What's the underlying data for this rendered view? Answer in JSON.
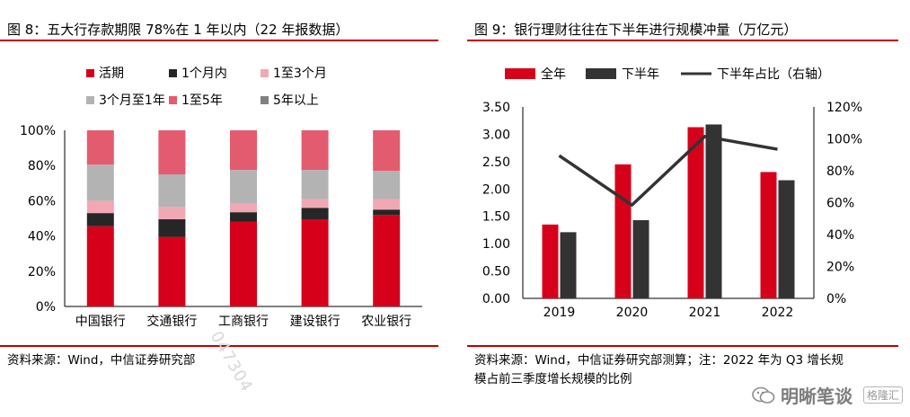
{
  "left": {
    "title": "图 8：五大行存款期限 78%在 1 年以内（22 年报数据）",
    "source": "资料来源：Wind，中信证券研究部"
  },
  "right": {
    "title": "图 9：银行理财往往在下半年进行规模冲量（万亿元）",
    "source_line1": "资料来源：Wind，中信证券研究部测算；注：2022 年为 Q3 增长规",
    "source_line2": "模占前三季度增长规模的比例"
  },
  "watermark": {
    "brand": "明晰笔谈",
    "platform": "格隆汇",
    "diagonal": "047304"
  },
  "chart_data": [
    {
      "type": "bar",
      "stacked": true,
      "categories": [
        "中国银行",
        "交通银行",
        "工商银行",
        "建设银行",
        "农业银行"
      ],
      "ylim": [
        0,
        100
      ],
      "yticks": [
        "0%",
        "20%",
        "40%",
        "60%",
        "80%",
        "100%"
      ],
      "legend_position": "top",
      "series": [
        {
          "name": "活期",
          "color": "#d7001b",
          "values": [
            45.5,
            39.5,
            48,
            49.5,
            52
          ]
        },
        {
          "name": "1个月内",
          "color": "#262626",
          "values": [
            7.5,
            10,
            5.5,
            6.5,
            3
          ]
        },
        {
          "name": "1至3个月",
          "color": "#f2a7b4",
          "values": [
            7,
            7,
            5,
            5,
            6
          ]
        },
        {
          "name": "3个月至1年",
          "color": "#b3b3b3",
          "values": [
            20.5,
            18.5,
            19,
            16.5,
            16
          ]
        },
        {
          "name": "1至5年",
          "color": "#e35b6f",
          "values": [
            19.5,
            25,
            22.5,
            22.5,
            23
          ]
        },
        {
          "name": "5年以上",
          "color": "#808080",
          "values": [
            0,
            0,
            0,
            0,
            0
          ]
        }
      ]
    },
    {
      "type": "bar",
      "categories": [
        "2019",
        "2020",
        "2021",
        "2022"
      ],
      "ylim": [
        0,
        3.5
      ],
      "yticks": [
        "0.00",
        "0.50",
        "1.00",
        "1.50",
        "2.00",
        "2.50",
        "3.00",
        "3.50"
      ],
      "y2lim": [
        0,
        120
      ],
      "y2ticks": [
        "0%",
        "20%",
        "40%",
        "60%",
        "80%",
        "100%",
        "120%"
      ],
      "legend_position": "top",
      "series": [
        {
          "name": "全年",
          "color": "#d7001b",
          "kind": "bar",
          "values": [
            1.35,
            2.45,
            3.13,
            2.31
          ]
        },
        {
          "name": "下半年",
          "color": "#333333",
          "kind": "bar",
          "values": [
            1.21,
            1.43,
            3.18,
            2.16
          ]
        },
        {
          "name": "下半年占比（右轴）",
          "color": "#333333",
          "kind": "line",
          "axis": "right",
          "values": [
            89.5,
            58.5,
            101.5,
            93.5
          ]
        }
      ]
    }
  ]
}
